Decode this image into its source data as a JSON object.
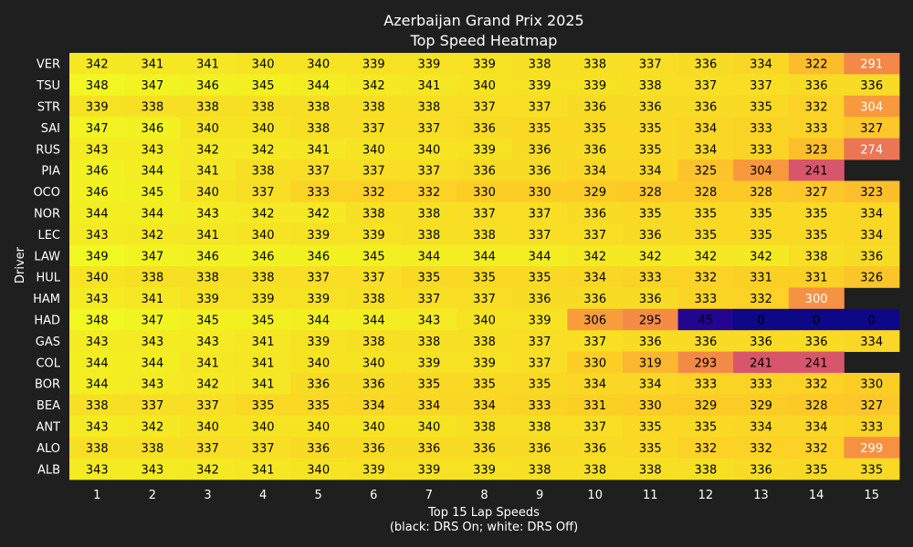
{
  "chart_data": {
    "type": "heatmap",
    "title": "Azerbaijan Grand Prix 2025",
    "subtitle": "Top Speed Heatmap",
    "xlabel": "Top 15 Lap Speeds",
    "xlabel_note": "(black: DRS On; white: DRS Off)",
    "ylabel": "Driver",
    "colormap": "plasma",
    "vmin": 0,
    "vmax": 349,
    "x": [
      1,
      2,
      3,
      4,
      5,
      6,
      7,
      8,
      9,
      10,
      11,
      12,
      13,
      14,
      15
    ],
    "rows": [
      {
        "driver": "VER",
        "values": [
          342,
          341,
          341,
          340,
          340,
          339,
          339,
          339,
          338,
          338,
          337,
          336,
          334,
          322,
          291
        ]
      },
      {
        "driver": "TSU",
        "values": [
          348,
          347,
          346,
          345,
          344,
          342,
          341,
          340,
          339,
          339,
          338,
          337,
          337,
          336,
          336
        ]
      },
      {
        "driver": "STR",
        "values": [
          339,
          338,
          338,
          338,
          338,
          338,
          338,
          337,
          337,
          336,
          336,
          336,
          335,
          332,
          304
        ]
      },
      {
        "driver": "SAI",
        "values": [
          347,
          346,
          340,
          340,
          338,
          337,
          337,
          336,
          335,
          335,
          335,
          334,
          333,
          333,
          327
        ]
      },
      {
        "driver": "RUS",
        "values": [
          343,
          343,
          342,
          342,
          341,
          340,
          340,
          339,
          336,
          336,
          335,
          334,
          333,
          323,
          274
        ]
      },
      {
        "driver": "PIA",
        "values": [
          346,
          344,
          341,
          338,
          337,
          337,
          337,
          336,
          336,
          334,
          334,
          325,
          304,
          241,
          null
        ]
      },
      {
        "driver": "OCO",
        "values": [
          346,
          345,
          340,
          337,
          333,
          332,
          332,
          330,
          330,
          329,
          328,
          328,
          328,
          327,
          323
        ]
      },
      {
        "driver": "NOR",
        "values": [
          344,
          344,
          343,
          342,
          342,
          338,
          338,
          337,
          337,
          336,
          335,
          335,
          335,
          335,
          334
        ]
      },
      {
        "driver": "LEC",
        "values": [
          343,
          342,
          341,
          340,
          339,
          339,
          338,
          338,
          337,
          337,
          336,
          335,
          335,
          335,
          334
        ]
      },
      {
        "driver": "LAW",
        "values": [
          349,
          347,
          346,
          346,
          346,
          345,
          344,
          344,
          344,
          342,
          342,
          342,
          342,
          338,
          336
        ]
      },
      {
        "driver": "HUL",
        "values": [
          340,
          338,
          338,
          338,
          337,
          337,
          335,
          335,
          335,
          334,
          333,
          332,
          331,
          331,
          326
        ]
      },
      {
        "driver": "HAM",
        "values": [
          343,
          341,
          339,
          339,
          339,
          338,
          337,
          337,
          336,
          336,
          336,
          333,
          332,
          300,
          null
        ]
      },
      {
        "driver": "HAD",
        "values": [
          348,
          347,
          345,
          345,
          344,
          344,
          343,
          340,
          339,
          306,
          295,
          45,
          0,
          0,
          0
        ]
      },
      {
        "driver": "GAS",
        "values": [
          343,
          343,
          343,
          341,
          339,
          338,
          338,
          338,
          337,
          337,
          336,
          336,
          336,
          336,
          334
        ]
      },
      {
        "driver": "COL",
        "values": [
          344,
          344,
          341,
          341,
          340,
          340,
          339,
          339,
          337,
          330,
          319,
          293,
          241,
          241,
          null
        ]
      },
      {
        "driver": "BOR",
        "values": [
          344,
          343,
          342,
          341,
          336,
          336,
          335,
          335,
          335,
          334,
          334,
          333,
          333,
          332,
          330
        ]
      },
      {
        "driver": "BEA",
        "values": [
          338,
          337,
          337,
          335,
          335,
          334,
          334,
          334,
          333,
          331,
          330,
          329,
          329,
          328,
          327
        ]
      },
      {
        "driver": "ANT",
        "values": [
          343,
          342,
          340,
          340,
          340,
          340,
          340,
          338,
          338,
          337,
          335,
          335,
          334,
          334,
          333
        ]
      },
      {
        "driver": "ALO",
        "values": [
          338,
          338,
          337,
          337,
          336,
          336,
          336,
          336,
          336,
          336,
          335,
          332,
          332,
          332,
          299
        ]
      },
      {
        "driver": "ALB",
        "values": [
          343,
          343,
          342,
          341,
          340,
          339,
          339,
          339,
          338,
          338,
          338,
          338,
          336,
          335,
          335
        ]
      }
    ],
    "label_color_drs": {
      "black": "#000000",
      "white": "#ffffff"
    },
    "drs_off_cells": [
      [
        "VER",
        15
      ],
      [
        "STR",
        15
      ],
      [
        "RUS",
        15
      ],
      [
        "HAM",
        14
      ],
      [
        "ALO",
        15
      ]
    ],
    "grid": false,
    "legend": "none",
    "background": "#1f1f1f"
  }
}
